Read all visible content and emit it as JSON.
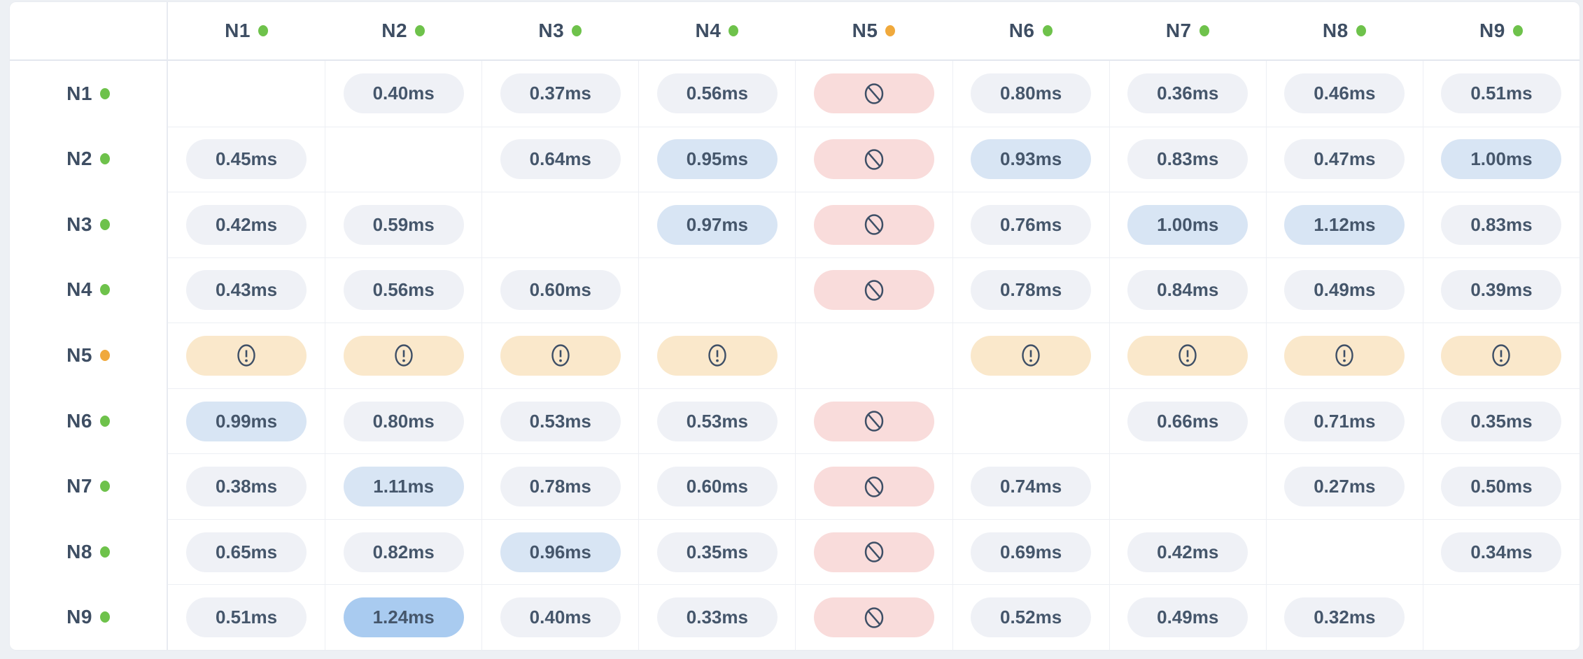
{
  "colors": {
    "page": "#edf0f4",
    "card": "#ffffff",
    "grid_line": "#edeff4",
    "strong_line": "#e3e7ee",
    "label_line": "#e8ebf1",
    "label_text": "#3e4e63",
    "value_text": "#45566b",
    "icon_stroke": "#3e4f66",
    "pill_normal": "#eff1f6",
    "pill_high": "#d8e5f4",
    "pill_highest": "#a9cbf0",
    "pill_blocked": "#f9dcdb",
    "pill_warning": "#fae8cb",
    "status_green": "#6ec24b",
    "status_amber": "#f0a93c"
  },
  "icons": {
    "status_dot": "status-dot-icon",
    "blocked": "no-entry-icon",
    "warning": "alert-circle-icon"
  },
  "matrix": {
    "unit": "ms",
    "columns": [
      {
        "label": "N1",
        "status": "green"
      },
      {
        "label": "N2",
        "status": "green"
      },
      {
        "label": "N3",
        "status": "green"
      },
      {
        "label": "N4",
        "status": "green"
      },
      {
        "label": "N5",
        "status": "amber"
      },
      {
        "label": "N6",
        "status": "green"
      },
      {
        "label": "N7",
        "status": "green"
      },
      {
        "label": "N8",
        "status": "green"
      },
      {
        "label": "N9",
        "status": "green"
      }
    ],
    "rows": [
      {
        "label": "N1",
        "status": "green",
        "cells": [
          {
            "t": "self"
          },
          {
            "t": "ms",
            "v": "0.40ms",
            "lv": "normal"
          },
          {
            "t": "ms",
            "v": "0.37ms",
            "lv": "normal"
          },
          {
            "t": "ms",
            "v": "0.56ms",
            "lv": "normal"
          },
          {
            "t": "blocked"
          },
          {
            "t": "ms",
            "v": "0.80ms",
            "lv": "normal"
          },
          {
            "t": "ms",
            "v": "0.36ms",
            "lv": "normal"
          },
          {
            "t": "ms",
            "v": "0.46ms",
            "lv": "normal"
          },
          {
            "t": "ms",
            "v": "0.51ms",
            "lv": "normal"
          }
        ]
      },
      {
        "label": "N2",
        "status": "green",
        "cells": [
          {
            "t": "ms",
            "v": "0.45ms",
            "lv": "normal"
          },
          {
            "t": "self"
          },
          {
            "t": "ms",
            "v": "0.64ms",
            "lv": "normal"
          },
          {
            "t": "ms",
            "v": "0.95ms",
            "lv": "high"
          },
          {
            "t": "blocked"
          },
          {
            "t": "ms",
            "v": "0.93ms",
            "lv": "high"
          },
          {
            "t": "ms",
            "v": "0.83ms",
            "lv": "normal"
          },
          {
            "t": "ms",
            "v": "0.47ms",
            "lv": "normal"
          },
          {
            "t": "ms",
            "v": "1.00ms",
            "lv": "high"
          }
        ]
      },
      {
        "label": "N3",
        "status": "green",
        "cells": [
          {
            "t": "ms",
            "v": "0.42ms",
            "lv": "normal"
          },
          {
            "t": "ms",
            "v": "0.59ms",
            "lv": "normal"
          },
          {
            "t": "self"
          },
          {
            "t": "ms",
            "v": "0.97ms",
            "lv": "high"
          },
          {
            "t": "blocked"
          },
          {
            "t": "ms",
            "v": "0.76ms",
            "lv": "normal"
          },
          {
            "t": "ms",
            "v": "1.00ms",
            "lv": "high"
          },
          {
            "t": "ms",
            "v": "1.12ms",
            "lv": "high"
          },
          {
            "t": "ms",
            "v": "0.83ms",
            "lv": "normal"
          }
        ]
      },
      {
        "label": "N4",
        "status": "green",
        "cells": [
          {
            "t": "ms",
            "v": "0.43ms",
            "lv": "normal"
          },
          {
            "t": "ms",
            "v": "0.56ms",
            "lv": "normal"
          },
          {
            "t": "ms",
            "v": "0.60ms",
            "lv": "normal"
          },
          {
            "t": "self"
          },
          {
            "t": "blocked"
          },
          {
            "t": "ms",
            "v": "0.78ms",
            "lv": "normal"
          },
          {
            "t": "ms",
            "v": "0.84ms",
            "lv": "normal"
          },
          {
            "t": "ms",
            "v": "0.49ms",
            "lv": "normal"
          },
          {
            "t": "ms",
            "v": "0.39ms",
            "lv": "normal"
          }
        ]
      },
      {
        "label": "N5",
        "status": "amber",
        "cells": [
          {
            "t": "warning"
          },
          {
            "t": "warning"
          },
          {
            "t": "warning"
          },
          {
            "t": "warning"
          },
          {
            "t": "self"
          },
          {
            "t": "warning"
          },
          {
            "t": "warning"
          },
          {
            "t": "warning"
          },
          {
            "t": "warning"
          }
        ]
      },
      {
        "label": "N6",
        "status": "green",
        "cells": [
          {
            "t": "ms",
            "v": "0.99ms",
            "lv": "high"
          },
          {
            "t": "ms",
            "v": "0.80ms",
            "lv": "normal"
          },
          {
            "t": "ms",
            "v": "0.53ms",
            "lv": "normal"
          },
          {
            "t": "ms",
            "v": "0.53ms",
            "lv": "normal"
          },
          {
            "t": "blocked"
          },
          {
            "t": "self"
          },
          {
            "t": "ms",
            "v": "0.66ms",
            "lv": "normal"
          },
          {
            "t": "ms",
            "v": "0.71ms",
            "lv": "normal"
          },
          {
            "t": "ms",
            "v": "0.35ms",
            "lv": "normal"
          }
        ]
      },
      {
        "label": "N7",
        "status": "green",
        "cells": [
          {
            "t": "ms",
            "v": "0.38ms",
            "lv": "normal"
          },
          {
            "t": "ms",
            "v": "1.11ms",
            "lv": "high"
          },
          {
            "t": "ms",
            "v": "0.78ms",
            "lv": "normal"
          },
          {
            "t": "ms",
            "v": "0.60ms",
            "lv": "normal"
          },
          {
            "t": "blocked"
          },
          {
            "t": "ms",
            "v": "0.74ms",
            "lv": "normal"
          },
          {
            "t": "self"
          },
          {
            "t": "ms",
            "v": "0.27ms",
            "lv": "normal"
          },
          {
            "t": "ms",
            "v": "0.50ms",
            "lv": "normal"
          }
        ]
      },
      {
        "label": "N8",
        "status": "green",
        "cells": [
          {
            "t": "ms",
            "v": "0.65ms",
            "lv": "normal"
          },
          {
            "t": "ms",
            "v": "0.82ms",
            "lv": "normal"
          },
          {
            "t": "ms",
            "v": "0.96ms",
            "lv": "high"
          },
          {
            "t": "ms",
            "v": "0.35ms",
            "lv": "normal"
          },
          {
            "t": "blocked"
          },
          {
            "t": "ms",
            "v": "0.69ms",
            "lv": "normal"
          },
          {
            "t": "ms",
            "v": "0.42ms",
            "lv": "normal"
          },
          {
            "t": "self"
          },
          {
            "t": "ms",
            "v": "0.34ms",
            "lv": "normal"
          }
        ]
      },
      {
        "label": "N9",
        "status": "green",
        "cells": [
          {
            "t": "ms",
            "v": "0.51ms",
            "lv": "normal"
          },
          {
            "t": "ms",
            "v": "1.24ms",
            "lv": "highest"
          },
          {
            "t": "ms",
            "v": "0.40ms",
            "lv": "normal"
          },
          {
            "t": "ms",
            "v": "0.33ms",
            "lv": "normal"
          },
          {
            "t": "blocked"
          },
          {
            "t": "ms",
            "v": "0.52ms",
            "lv": "normal"
          },
          {
            "t": "ms",
            "v": "0.49ms",
            "lv": "normal"
          },
          {
            "t": "ms",
            "v": "0.32ms",
            "lv": "normal"
          },
          {
            "t": "self"
          }
        ]
      }
    ]
  }
}
